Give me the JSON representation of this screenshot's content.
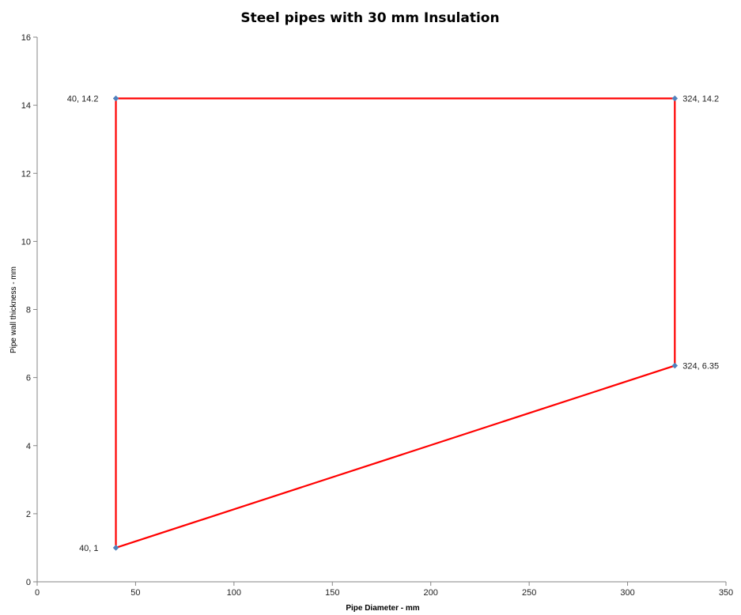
{
  "chart_data": {
    "type": "scatter",
    "title": "Steel pipes with 30 mm Insulation",
    "xlabel": "Pipe Diameter - mm",
    "ylabel": "Pipe wall thickness - mm",
    "xlim": [
      0,
      350
    ],
    "ylim": [
      0,
      16
    ],
    "xticks": [
      0,
      50,
      100,
      150,
      200,
      250,
      300,
      350
    ],
    "yticks": [
      0,
      2,
      4,
      6,
      8,
      10,
      12,
      14,
      16
    ],
    "grid": false,
    "legend": "none",
    "series": [
      {
        "line_color": "#ff0000",
        "marker_color": "#4f81bd",
        "points": [
          {
            "x": 40,
            "y": 1,
            "label": "40, 1",
            "label_pos": "left"
          },
          {
            "x": 40,
            "y": 14.2,
            "label": "40, 14.2",
            "label_pos": "left"
          },
          {
            "x": 324,
            "y": 14.2,
            "label": "324, 14.2",
            "label_pos": "right"
          },
          {
            "x": 324,
            "y": 6.35,
            "label": "324, 6.35",
            "label_pos": "right"
          },
          {
            "x": 40,
            "y": 1,
            "label": "",
            "label_pos": "none"
          }
        ]
      }
    ]
  }
}
